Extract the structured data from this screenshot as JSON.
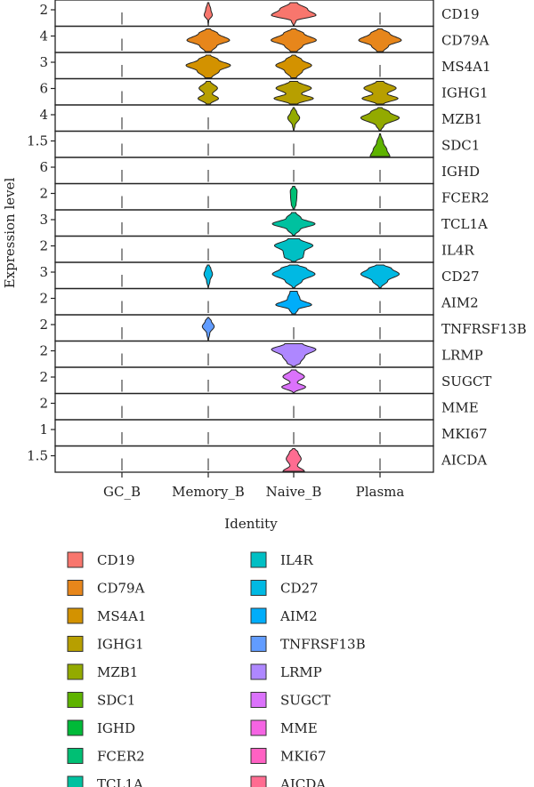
{
  "chart_data": {
    "type": "violin",
    "xlabel": "Identity",
    "ylabel": "Expression level",
    "categories": [
      "GC_B",
      "Memory_B",
      "Naive_B",
      "Plasma"
    ],
    "genes": [
      {
        "name": "CD19",
        "color": "#F8766D",
        "tick": "2",
        "widths": [
          0.0,
          0.1,
          0.55,
          0.0
        ],
        "shape": [
          [
            0,
            0.02
          ],
          [
            0.2,
            0.1
          ],
          [
            0.45,
            0.95
          ],
          [
            0.7,
            0.6
          ],
          [
            1,
            0.15
          ]
        ]
      },
      {
        "name": "CD79A",
        "color": "#E7861B",
        "tick": "4",
        "widths": [
          0.0,
          0.5,
          0.53,
          0.5
        ],
        "shape": [
          [
            0,
            0.15
          ],
          [
            0.25,
            0.4
          ],
          [
            0.5,
            1
          ],
          [
            0.8,
            0.45
          ],
          [
            1,
            0.1
          ]
        ]
      },
      {
        "name": "MS4A1",
        "color": "#D39200",
        "tick": "3",
        "widths": [
          0.0,
          0.52,
          0.42,
          0.0
        ],
        "shape": [
          [
            0,
            0.15
          ],
          [
            0.3,
            0.5
          ],
          [
            0.55,
            1
          ],
          [
            0.8,
            0.45
          ],
          [
            1,
            0.1
          ]
        ]
      },
      {
        "name": "IGHG1",
        "color": "#B79F00",
        "tick": "6",
        "widths": [
          0.0,
          0.24,
          0.46,
          0.42
        ],
        "shape": [
          [
            0,
            0.2
          ],
          [
            0.25,
            1
          ],
          [
            0.45,
            0.4
          ],
          [
            0.7,
            0.9
          ],
          [
            1,
            0.2
          ]
        ]
      },
      {
        "name": "MZB1",
        "color": "#93AA00",
        "tick": "4",
        "widths": [
          0.0,
          0.0,
          0.14,
          0.45
        ],
        "shape": [
          [
            0,
            0.05
          ],
          [
            0.2,
            0.2
          ],
          [
            0.55,
            1
          ],
          [
            0.8,
            0.5
          ],
          [
            1,
            0.1
          ]
        ]
      },
      {
        "name": "SDC1",
        "color": "#5EB300",
        "tick": "1.5",
        "widths": [
          0.0,
          0.0,
          0.0,
          0.23
        ],
        "shape": [
          [
            0,
            1
          ],
          [
            0.3,
            0.7
          ],
          [
            0.6,
            0.35
          ],
          [
            1,
            0.05
          ]
        ]
      },
      {
        "name": "IGHD",
        "color": "#00BA38",
        "tick": "6",
        "widths": [
          0.0,
          0.0,
          0.0,
          0.0
        ],
        "shape": [
          [
            0,
            1
          ],
          [
            1,
            0.05
          ]
        ]
      },
      {
        "name": "FCER2",
        "color": "#00BF74",
        "tick": "2",
        "widths": [
          0.0,
          0.0,
          0.08,
          0.0
        ],
        "shape": [
          [
            0,
            0.2
          ],
          [
            0.2,
            0.7
          ],
          [
            0.5,
            0.9
          ],
          [
            0.8,
            1
          ],
          [
            1,
            0.3
          ]
        ]
      },
      {
        "name": "TCL1A",
        "color": "#00C19F",
        "tick": "3",
        "widths": [
          0.0,
          0.0,
          0.5,
          0.0
        ],
        "shape": [
          [
            0,
            0.05
          ],
          [
            0.25,
            0.3
          ],
          [
            0.5,
            1
          ],
          [
            0.75,
            0.35
          ],
          [
            1,
            0.1
          ]
        ]
      },
      {
        "name": "IL4R",
        "color": "#00BFC4",
        "tick": "2",
        "widths": [
          0.0,
          0.0,
          0.45,
          0.0
        ],
        "shape": [
          [
            0,
            0.1
          ],
          [
            0.2,
            0.5
          ],
          [
            0.45,
            0.55
          ],
          [
            0.7,
            1
          ],
          [
            1,
            0.3
          ]
        ]
      },
      {
        "name": "CD27",
        "color": "#00B9E3",
        "tick": "3",
        "widths": [
          0.0,
          0.1,
          0.5,
          0.45
        ],
        "shape": [
          [
            0,
            0.05
          ],
          [
            0.3,
            0.4
          ],
          [
            0.6,
            1
          ],
          [
            0.85,
            0.6
          ],
          [
            1,
            0.2
          ]
        ]
      },
      {
        "name": "AIM2",
        "color": "#00ADFA",
        "tick": "2",
        "widths": [
          0.0,
          0.0,
          0.42,
          0.0
        ],
        "shape": [
          [
            0,
            0.1
          ],
          [
            0.2,
            0.25
          ],
          [
            0.4,
            1
          ],
          [
            0.65,
            0.35
          ],
          [
            1,
            0.2
          ]
        ]
      },
      {
        "name": "TNFRSF13B",
        "color": "#619CFF",
        "tick": "2",
        "widths": [
          0.0,
          0.14,
          0.0,
          0.0
        ],
        "shape": [
          [
            0,
            0.05
          ],
          [
            0.3,
            0.25
          ],
          [
            0.6,
            1
          ],
          [
            0.85,
            0.5
          ],
          [
            1,
            0.1
          ]
        ]
      },
      {
        "name": "LRMP",
        "color": "#AE87FF",
        "tick": "2",
        "widths": [
          0.0,
          0.0,
          0.52,
          0.0
        ],
        "shape": [
          [
            0,
            0.05
          ],
          [
            0.15,
            0.3
          ],
          [
            0.45,
            0.5
          ],
          [
            0.75,
            1
          ],
          [
            1,
            0.4
          ]
        ]
      },
      {
        "name": "SUGCT",
        "color": "#DB72FB",
        "tick": "2",
        "widths": [
          0.0,
          0.0,
          0.28,
          0.0
        ],
        "shape": [
          [
            0,
            0.05
          ],
          [
            0.25,
            1
          ],
          [
            0.45,
            0.3
          ],
          [
            0.7,
            0.9
          ],
          [
            1,
            0.2
          ]
        ]
      },
      {
        "name": "MME",
        "color": "#F564E3",
        "tick": "2",
        "widths": [
          0.0,
          0.0,
          0.0,
          0.0
        ],
        "shape": [
          [
            0,
            1
          ],
          [
            1,
            0.05
          ]
        ]
      },
      {
        "name": "MKI67",
        "color": "#FF61C3",
        "tick": "1",
        "widths": [
          0.0,
          0.0,
          0.0,
          0.0
        ],
        "shape": [
          [
            0,
            1
          ],
          [
            1,
            0.05
          ]
        ]
      },
      {
        "name": "AICDA",
        "color": "#FF6C91",
        "tick": "1.5",
        "widths": [
          0.0,
          0.0,
          0.25,
          0.0
        ],
        "shape": [
          [
            0,
            1
          ],
          [
            0.25,
            0.35
          ],
          [
            0.55,
            0.7
          ],
          [
            0.85,
            0.4
          ],
          [
            1,
            0.1
          ]
        ]
      }
    ]
  }
}
